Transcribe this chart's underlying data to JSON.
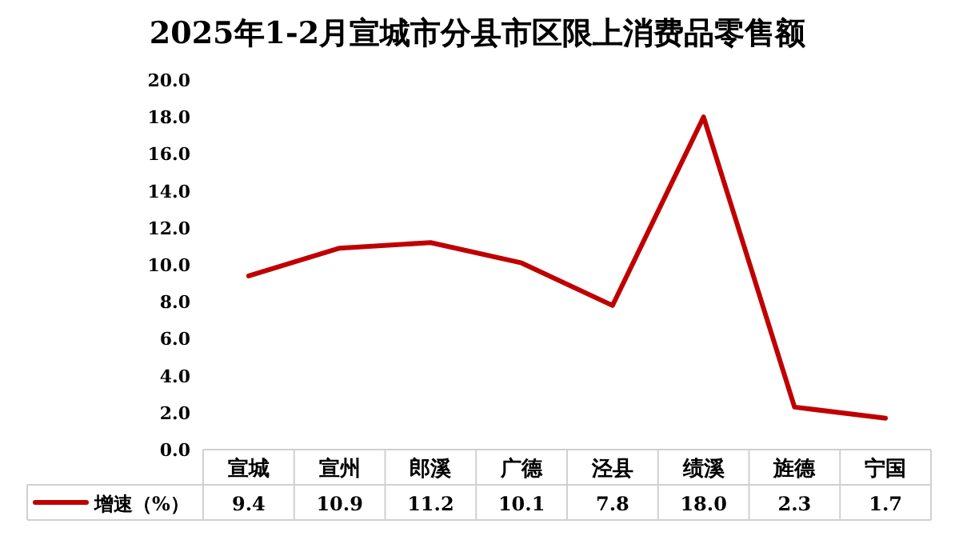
{
  "chart_data": {
    "type": "line",
    "title": "2025年1-2月宣城市分县市区限上消费品零售额",
    "categories": [
      "宣城",
      "宣州",
      "郎溪",
      "广德",
      "泾县",
      "绩溪",
      "旌德",
      "宁国"
    ],
    "series": [
      {
        "name": "增速（%）",
        "color": "#c00000",
        "values": [
          9.4,
          10.9,
          11.2,
          10.1,
          7.8,
          18.0,
          2.3,
          1.7
        ],
        "value_labels": [
          "9.4",
          "10.9",
          "11.2",
          "10.1",
          "7.8",
          "18.0",
          "2.3",
          "1.7"
        ]
      }
    ],
    "ylim": [
      0,
      20
    ],
    "yticks": [
      {
        "value": 0,
        "label": "0.0"
      },
      {
        "value": 2,
        "label": "2.0"
      },
      {
        "value": 4,
        "label": "4.0"
      },
      {
        "value": 6,
        "label": "6.0"
      },
      {
        "value": 8,
        "label": "8.0"
      },
      {
        "value": 10,
        "label": "10.0"
      },
      {
        "value": 12,
        "label": "12.0"
      },
      {
        "value": 14,
        "label": "14.0"
      },
      {
        "value": 16,
        "label": "16.0"
      },
      {
        "value": 18,
        "label": "18.0"
      },
      {
        "value": 20,
        "label": "20.0"
      }
    ],
    "grid": false,
    "legend": "bottom",
    "marker": "none",
    "line_style": "solid"
  }
}
